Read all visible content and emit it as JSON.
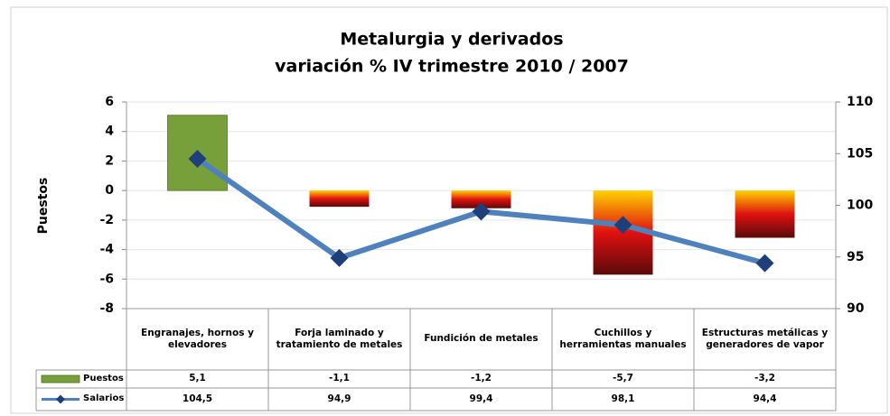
{
  "chart_data": {
    "type": "bar-line",
    "title": "Metalurgia y derivados",
    "subtitle": "variación % IV trimestre 2010 / 2007",
    "y_label": "Puestos",
    "categories": [
      "Engranajes, hornos y elevadores",
      "Forja laminado y tratamiento de metales",
      "Fundición de metales",
      "Cuchillos y herramientas manuales",
      "Estructuras metálicas y generadores de vapor"
    ],
    "series": [
      {
        "name": "Puestos",
        "type": "bar",
        "color": "#77a03b",
        "negative_colors": [
          "#ffd200",
          "#e01010",
          "#5a0a0a"
        ],
        "values": [
          5.1,
          -1.1,
          -1.2,
          -5.7,
          -3.2
        ],
        "value_labels": [
          "5,1",
          "-1,1",
          "-1,2",
          "-5,7",
          "-3,2"
        ]
      },
      {
        "name": "Salarios",
        "type": "line",
        "axis": "y2",
        "color": "#4f81bd",
        "marker_color": "#1f3f7a",
        "values": [
          104.5,
          94.9,
          99.4,
          98.1,
          94.4
        ],
        "value_labels": [
          "104,5",
          "94,9",
          "99,4",
          "98,1",
          "94,4"
        ]
      }
    ],
    "ylim": [
      -8,
      6
    ],
    "yticks": [
      -8,
      -6,
      -4,
      -2,
      0,
      2,
      4,
      6
    ],
    "y2lim": [
      90,
      110
    ],
    "y2ticks": [
      90,
      95,
      100,
      105,
      110
    ],
    "grid": true
  }
}
